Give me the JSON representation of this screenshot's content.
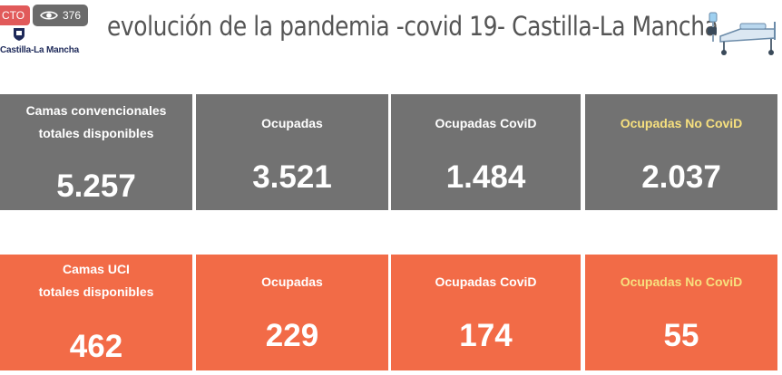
{
  "overlay": {
    "live_label": "CTO",
    "view_count": "376",
    "view_icon": "eye-icon"
  },
  "logo": {
    "text": "Castilla-La Mancha"
  },
  "header": {
    "title": "evolución de la pandemia -covid 19- Castilla-La Mancha",
    "icon": "hospital-bed-icon"
  },
  "colors": {
    "conventional_card": "#727272",
    "icu_card": "#f26b47",
    "highlight_label": "#f7e07e"
  },
  "conventional": {
    "total": {
      "label": "Camas convencionales\ntotales disponibles",
      "value": "5.257"
    },
    "occupied": {
      "label": "Ocupadas",
      "value": "3.521"
    },
    "occupied_covid": {
      "label": "Ocupadas CoviD",
      "value": "1.484"
    },
    "occupied_non_covid": {
      "label": "Ocupadas No CoviD",
      "value": "2.037"
    }
  },
  "icu": {
    "total": {
      "label": "Camas UCI\ntotales disponibles",
      "value": "462"
    },
    "occupied": {
      "label": "Ocupadas",
      "value": "229"
    },
    "occupied_covid": {
      "label": "Ocupadas CoviD",
      "value": "174"
    },
    "occupied_non_covid": {
      "label": "Ocupadas No CoviD",
      "value": "55"
    }
  }
}
